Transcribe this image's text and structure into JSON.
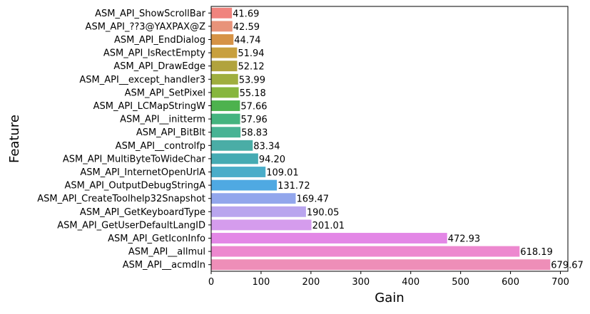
{
  "chart_data": {
    "type": "bar",
    "orientation": "horizontal",
    "xlabel": "Gain",
    "ylabel": "Feature",
    "xlim": [
      0,
      715
    ],
    "xticks": [
      0,
      100,
      200,
      300,
      400,
      500,
      600,
      700
    ],
    "grid": false,
    "categories": [
      "ASM_API_ShowScrollBar",
      "ASM_API_??3@YAXPAX@Z",
      "ASM_API_EndDialog",
      "ASM_API_IsRectEmpty",
      "ASM_API_DrawEdge",
      "ASM_API__except_handler3",
      "ASM_API_SetPixel",
      "ASM_API_LCMapStringW",
      "ASM_API__initterm",
      "ASM_API_BitBlt",
      "ASM_API__controlfp",
      "ASM_API_MultiByteToWideChar",
      "ASM_API_InternetOpenUrlA",
      "ASM_API_OutputDebugStringA",
      "ASM_API_CreateToolhelp32Snapshot",
      "ASM_API_GetKeyboardType",
      "ASM_API_GetUserDefaultLangID",
      "ASM_API_GetIconInfo",
      "ASM_API__allmul",
      "ASM_API__acmdln"
    ],
    "values": [
      41.69,
      42.59,
      44.74,
      51.94,
      52.12,
      53.99,
      55.18,
      57.66,
      57.96,
      58.83,
      83.34,
      94.2,
      109.01,
      131.72,
      169.47,
      190.05,
      201.01,
      472.93,
      618.19,
      679.67
    ],
    "value_labels": [
      "41.69",
      "42.59",
      "44.74",
      "51.94",
      "52.12",
      "53.99",
      "55.18",
      "57.66",
      "57.96",
      "58.83",
      "83.34",
      "94.20",
      "109.01",
      "131.72",
      "169.47",
      "190.05",
      "201.01",
      "472.93",
      "618.19",
      "679.67"
    ],
    "colors": [
      "#f0847e",
      "#e8937a",
      "#d69346",
      "#c8a03e",
      "#b1a33d",
      "#9fae3e",
      "#87b63e",
      "#4db24e",
      "#44b47f",
      "#48b394",
      "#4aada6",
      "#45abb3",
      "#4aadc9",
      "#4fa9e2",
      "#92a6ec",
      "#b9a5ee",
      "#d59ced",
      "#e387e6",
      "#ed88cf",
      "#ee8eb8"
    ]
  }
}
